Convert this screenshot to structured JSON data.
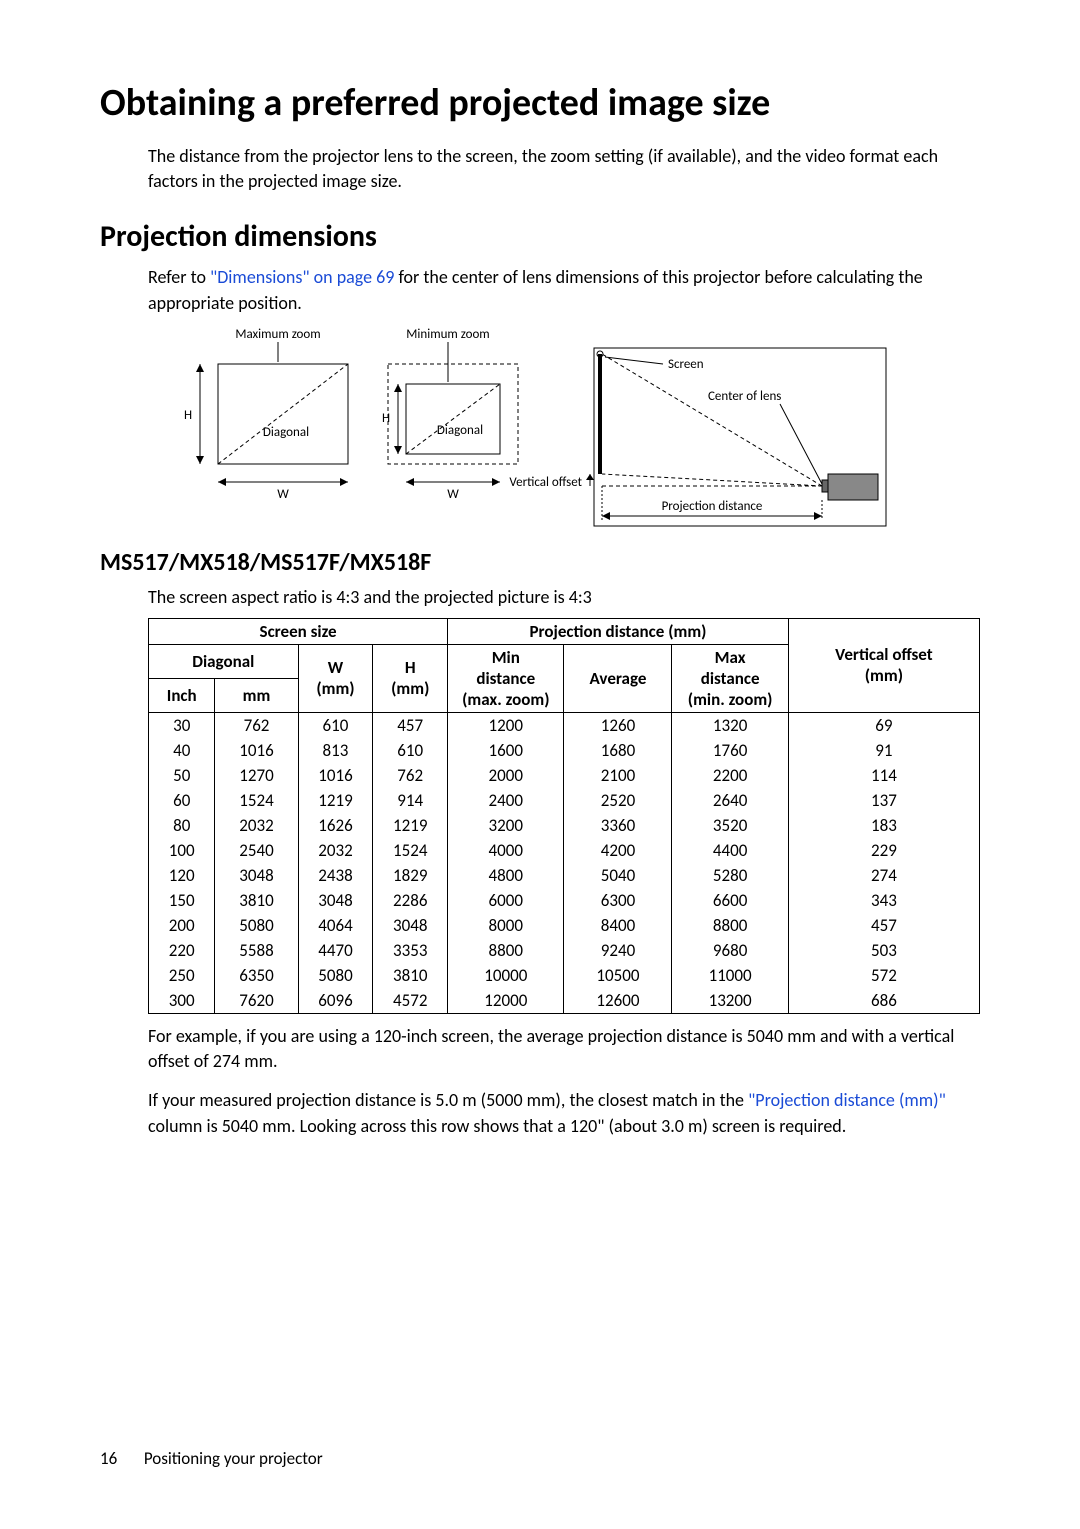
{
  "page": {
    "title": "Obtaining a preferred projected image size",
    "intro": "The distance from the projector lens to the screen, the zoom setting (if available), and the video format each factors in the projected image size.",
    "section2": "Projection dimensions",
    "refer_pre": "Refer to ",
    "refer_link": "\"Dimensions\" on page 69",
    "refer_post": " for the center of lens dimensions of this projector before calculating the appropriate position.",
    "section3": "MS517/MX518/MS517F/MX518F",
    "aspect_note": "The screen aspect ratio is 4:3 and the projected picture is 4:3",
    "example": "For example, if you are using a 120-inch screen, the average projection distance is 5040 mm and with a vertical offset of 274 mm.",
    "measured_pre": "If your measured projection distance is 5.0 m (5000 mm), the closest match in the ",
    "measured_link": "\"Projection distance (mm)\"",
    "measured_post": " column is 5040 mm. Looking across this row shows that a 120\" (about 3.0 m) screen is required.",
    "footer_num": "16",
    "footer_text": "Positioning your projector"
  },
  "diagram": {
    "max_zoom": "Maximum zoom",
    "min_zoom": "Minimum zoom",
    "H": "H",
    "W": "W",
    "diagonal": "Diagonal",
    "screen": "Screen",
    "center_of_lens": "Center of lens",
    "vertical_offset": "Vertical offset",
    "projection_distance": "Projection distance",
    "label_fontsize": 13,
    "line_color": "#000000",
    "dash": "4,3"
  },
  "table": {
    "headers": {
      "screen_size": "Screen size",
      "projection_distance": "Projection distance (mm)",
      "vertical_offset": "Vertical offset",
      "diagonal": "Diagonal",
      "W": "W",
      "H": "H",
      "min": "Min",
      "avg": "Average",
      "max": "Max",
      "mm": "(mm)",
      "inch": "Inch",
      "mm2": "mm",
      "distance": "distance",
      "max_zoom": "(max. zoom)",
      "min_zoom": "(min. zoom)"
    },
    "rows": [
      [
        30,
        762,
        610,
        457,
        1200,
        1260,
        1320,
        69
      ],
      [
        40,
        1016,
        813,
        610,
        1600,
        1680,
        1760,
        91
      ],
      [
        50,
        1270,
        1016,
        762,
        2000,
        2100,
        2200,
        114
      ],
      [
        60,
        1524,
        1219,
        914,
        2400,
        2520,
        2640,
        137
      ],
      [
        80,
        2032,
        1626,
        1219,
        3200,
        3360,
        3520,
        183
      ],
      [
        100,
        2540,
        2032,
        1524,
        4000,
        4200,
        4400,
        229
      ],
      [
        120,
        3048,
        2438,
        1829,
        4800,
        5040,
        5280,
        274
      ],
      [
        150,
        3810,
        3048,
        2286,
        6000,
        6300,
        6600,
        343
      ],
      [
        200,
        5080,
        4064,
        3048,
        8000,
        8400,
        8800,
        457
      ],
      [
        220,
        5588,
        4470,
        3353,
        8800,
        9240,
        9680,
        503
      ],
      [
        250,
        6350,
        5080,
        3810,
        10000,
        10500,
        11000,
        572
      ],
      [
        300,
        7620,
        6096,
        4572,
        12000,
        12600,
        13200,
        686
      ]
    ],
    "col_widths_pct": [
      8,
      10,
      9,
      9,
      14,
      13,
      14,
      23
    ],
    "border_color": "#000000",
    "header_fontweight": "bold",
    "fontsize": 17
  }
}
